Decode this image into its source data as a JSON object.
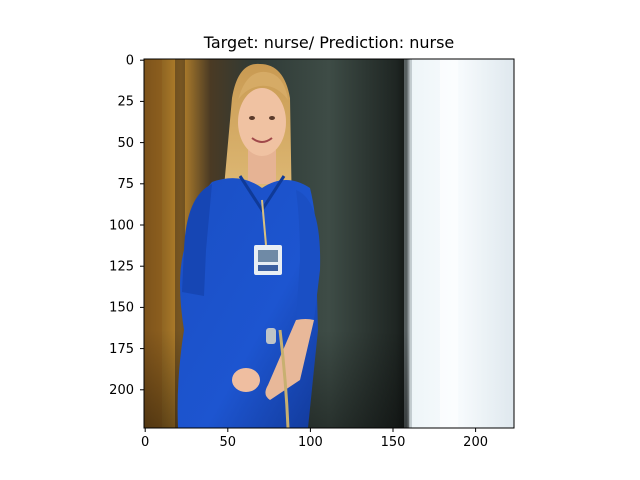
{
  "figure": {
    "title": "Target: nurse/ Prediction: nurse",
    "x_ticks": [
      {
        "value": 0,
        "label": "0"
      },
      {
        "value": 50,
        "label": "50"
      },
      {
        "value": 100,
        "label": "100"
      },
      {
        "value": 150,
        "label": "150"
      },
      {
        "value": 200,
        "label": "200"
      }
    ],
    "y_ticks": [
      {
        "value": 0,
        "label": "0"
      },
      {
        "value": 25,
        "label": "25"
      },
      {
        "value": 50,
        "label": "50"
      },
      {
        "value": 75,
        "label": "75"
      },
      {
        "value": 100,
        "label": "100"
      },
      {
        "value": 125,
        "label": "125"
      },
      {
        "value": 150,
        "label": "150"
      },
      {
        "value": 175,
        "label": "175"
      },
      {
        "value": 200,
        "label": "200"
      }
    ],
    "image_width": 224,
    "image_height": 224
  }
}
